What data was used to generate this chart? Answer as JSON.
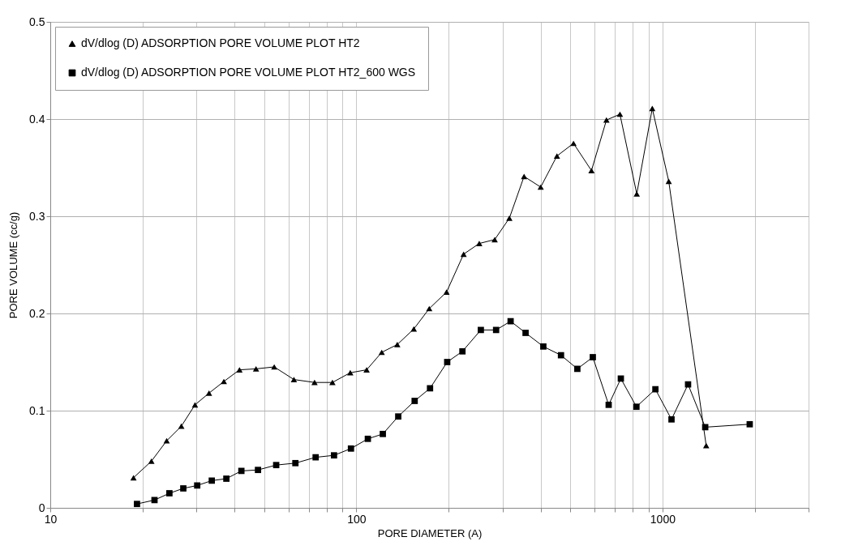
{
  "chart_data": {
    "type": "line",
    "xlabel": "PORE DIAMETER (A)",
    "ylabel": "PORE VOLUME (cc/g)",
    "log": "x",
    "grid": true,
    "legend": "top left",
    "line_style": "solid",
    "xlim": [
      10,
      3000
    ],
    "xticks": [
      10,
      {
        "value": 20,
        "label": null
      },
      {
        "value": 30,
        "label": null
      },
      {
        "value": 40,
        "label": null
      },
      {
        "value": 50,
        "label": null
      },
      {
        "value": 60,
        "label": null
      },
      {
        "value": 70,
        "label": null
      },
      {
        "value": 80,
        "label": null
      },
      {
        "value": 90,
        "label": null
      },
      100,
      {
        "value": 200,
        "label": null
      },
      {
        "value": 300,
        "label": null
      },
      {
        "value": 400,
        "label": null
      },
      {
        "value": 500,
        "label": null
      },
      {
        "value": 600,
        "label": null
      },
      {
        "value": 700,
        "label": null
      },
      {
        "value": 800,
        "label": null
      },
      {
        "value": 900,
        "label": null
      },
      1000,
      {
        "value": 2000,
        "label": null
      },
      {
        "value": 3000,
        "label": null
      }
    ],
    "ylim": [
      0,
      0.5
    ],
    "yticks": [
      0,
      0.1,
      0.2,
      0.3,
      0.4,
      0.5
    ],
    "series": [
      {
        "name": "dV/dlog (D) ADSORPTION PORE VOLUME PLOT HT2",
        "color": "#000000",
        "marker": "triangle",
        "x": [
          18.7,
          21.4,
          24.0,
          26.8,
          29.7,
          33.0,
          36.9,
          41.5,
          47.0,
          53.9,
          62.5,
          73.0,
          83.5,
          95.5,
          108,
          121,
          136,
          154,
          173,
          197,
          224,
          252,
          283,
          316,
          353,
          400,
          452,
          512,
          586,
          656,
          726,
          824,
          926,
          1048,
          1389
        ],
        "values": [
          0.031,
          0.048,
          0.069,
          0.084,
          0.106,
          0.118,
          0.13,
          0.142,
          0.143,
          0.145,
          0.132,
          0.129,
          0.129,
          0.139,
          0.142,
          0.16,
          0.168,
          0.184,
          0.205,
          0.222,
          0.261,
          0.272,
          0.276,
          0.298,
          0.341,
          0.33,
          0.362,
          0.375,
          0.347,
          0.399,
          0.405,
          0.323,
          0.411,
          0.336,
          0.064
        ]
      },
      {
        "name": "dV/dlog (D) ADSORPTION PORE VOLUME PLOT HT2_600 WGS",
        "color": "#000000",
        "marker": "square",
        "x": [
          19.2,
          21.9,
          24.5,
          27.2,
          30.2,
          33.7,
          37.6,
          42.1,
          47.7,
          54.7,
          63.2,
          73.6,
          84.5,
          96.0,
          109,
          122,
          137,
          155,
          174,
          198,
          222,
          255,
          286,
          319,
          357,
          408,
          466,
          527,
          592,
          667,
          731,
          822,
          948,
          1070,
          1212,
          1379,
          1927
        ],
        "values": [
          0.004,
          0.008,
          0.015,
          0.02,
          0.023,
          0.028,
          0.03,
          0.038,
          0.039,
          0.044,
          0.046,
          0.052,
          0.054,
          0.061,
          0.071,
          0.076,
          0.094,
          0.11,
          0.123,
          0.15,
          0.161,
          0.183,
          0.183,
          0.192,
          0.18,
          0.166,
          0.157,
          0.143,
          0.155,
          0.106,
          0.133,
          0.104,
          0.122,
          0.091,
          0.127,
          0.083,
          0.086
        ]
      }
    ]
  }
}
